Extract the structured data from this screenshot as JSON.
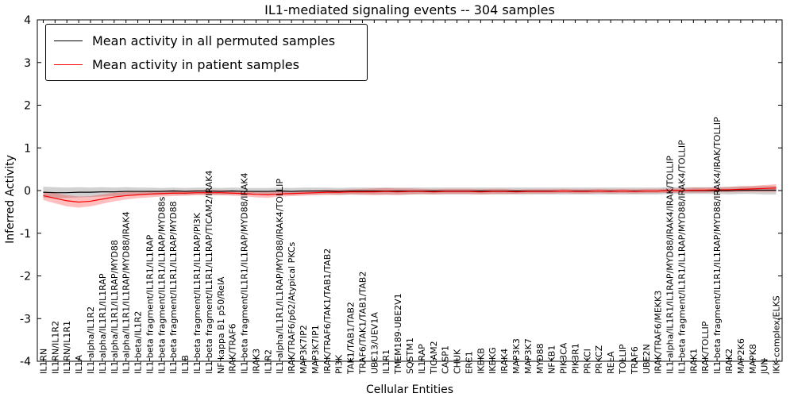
{
  "chart_data": {
    "type": "line",
    "title": "IL1-mediated signaling events -- 304 samples",
    "xlabel": "Cellular Entities",
    "ylabel": "Inferred Activity",
    "ylim": [
      -4,
      4
    ],
    "yticks": [
      -4,
      -3,
      -2,
      -1,
      0,
      1,
      2,
      3,
      4
    ],
    "grid": false,
    "legend_position": "upper left",
    "categories": [
      "IL1RN",
      "IL1RN/IL1R2",
      "IL1RN/IL1R1",
      "IL1A",
      "IL1 alpha/IL1R2",
      "IL1 alpha/IL1R1/IL1RAP",
      "IL1 alpha/IL1R1/IL1RAP/MYD88",
      "IL1 alpha/IL1R1/IL1RAP/MYD88/IRAK4",
      "IL1 beta/IL1R2",
      "IL1 beta fragment/IL1R1/IL1RAP",
      "IL1 beta fragment/IL1R1/IL1RAP/MYD88s",
      "IL1 beta fragment/IL1R1/IL1RAP/MYD88",
      "IL1B",
      "IL1 beta fragment/IL1R1/IL1RAP/PI3K",
      "IL1 beta fragment/IL1R1/IL1RAP/TICAM2/IRAK4",
      "NF kappa B1 p50/RelA",
      "IRAK/TRAF6",
      "IL1 beta fragment/IL1R1/IL1RAP/MYD88/IRAK4",
      "IRAK3",
      "IL1R2",
      "IL1 alpha/IL1R1/IL1RAP/MYD88/IRAK4/TOLLIP",
      "IRAK/TRAF6/p62/Atypical PKCs",
      "MAP3K7IP2",
      "MAP3K7IP1",
      "IRAK/TRAF6/TAK1/TAB1/TAB2",
      "PI3K",
      "TAK1/TAB1/TAB2",
      "TRAF6/TAK1/TAB1/TAB2",
      "UBC13/UEV1A",
      "IL1R1",
      "TMEM189-UBE2V1",
      "SQSTM1",
      "IL1RAP",
      "TICAM2",
      "CASP1",
      "CHUK",
      "ERC1",
      "IKBKB",
      "IKBKG",
      "IRAK4",
      "MAP3K3",
      "MAP3K7",
      "MYD88",
      "NFKB1",
      "PIK3CA",
      "PIK3R1",
      "PRKCI",
      "PRKCZ",
      "RELA",
      "TOLLIP",
      "TRAF6",
      "UBE2N",
      "IRAK/TRAF6/MEKK3",
      "IL1 alpha/IL1R1/IL1RAP/MYD88/IRAK4/IRAK/TOLLIP",
      "IL1 beta fragment/IL1R1/IL1RAP/MYD88/IRAK4/TOLLIP",
      "IRAK1",
      "IRAK/TOLLIP",
      "IL1 beta fragment/IL1R1/IL1RAP/MYD88/IRAK4/IRAK/TOLLIP",
      "IRAK2",
      "MAP2K6",
      "MAPK8",
      "JUN",
      "IKK complex/ELKS"
    ],
    "series": [
      {
        "id": "permuted",
        "name": "Mean activity in all permuted samples",
        "color": "#000000",
        "band_color": "#000000",
        "band_opacity": 0.18,
        "values": [
          -0.04,
          -0.05,
          -0.05,
          -0.04,
          -0.04,
          -0.03,
          -0.03,
          -0.02,
          -0.02,
          -0.02,
          -0.02,
          -0.01,
          -0.02,
          -0.01,
          -0.01,
          -0.02,
          -0.01,
          -0.02,
          -0.02,
          -0.02,
          -0.01,
          -0.02,
          -0.01,
          -0.01,
          -0.01,
          -0.02,
          -0.01,
          -0.01,
          -0.01,
          -0.01,
          -0.01,
          -0.01,
          -0.01,
          -0.01,
          -0.01,
          -0.01,
          -0.01,
          -0.01,
          -0.01,
          -0.01,
          -0.01,
          -0.01,
          -0.01,
          -0.01,
          -0.01,
          -0.01,
          -0.01,
          -0.01,
          -0.01,
          -0.01,
          -0.01,
          -0.01,
          -0.01,
          0.0,
          0.0,
          0.0,
          0.0,
          0.0,
          0.0,
          0.01,
          0.01,
          0.01,
          0.01
        ],
        "band_halfwidth": [
          0.13,
          0.13,
          0.12,
          0.12,
          0.11,
          0.11,
          0.1,
          0.1,
          0.09,
          0.09,
          0.08,
          0.08,
          0.08,
          0.08,
          0.08,
          0.08,
          0.08,
          0.08,
          0.08,
          0.08,
          0.08,
          0.08,
          0.08,
          0.08,
          0.08,
          0.08,
          0.08,
          0.08,
          0.08,
          0.08,
          0.08,
          0.08,
          0.08,
          0.08,
          0.08,
          0.08,
          0.08,
          0.08,
          0.08,
          0.08,
          0.08,
          0.08,
          0.08,
          0.08,
          0.08,
          0.08,
          0.08,
          0.08,
          0.08,
          0.08,
          0.08,
          0.08,
          0.08,
          0.08,
          0.08,
          0.08,
          0.08,
          0.08,
          0.09,
          0.09,
          0.09,
          0.1,
          0.1
        ]
      },
      {
        "id": "patient",
        "name": "Mean activity in patient samples",
        "color": "#ff0000",
        "band_color": "#ff0000",
        "band_opacity": 0.25,
        "values": [
          -0.12,
          -0.18,
          -0.24,
          -0.27,
          -0.25,
          -0.2,
          -0.15,
          -0.12,
          -0.1,
          -0.08,
          -0.07,
          -0.06,
          -0.06,
          -0.05,
          -0.05,
          -0.05,
          -0.06,
          -0.07,
          -0.09,
          -0.1,
          -0.08,
          -0.07,
          -0.06,
          -0.05,
          -0.04,
          -0.04,
          -0.03,
          -0.03,
          -0.03,
          -0.02,
          -0.03,
          -0.02,
          -0.02,
          -0.03,
          -0.02,
          -0.02,
          -0.02,
          -0.03,
          -0.02,
          -0.02,
          -0.03,
          -0.02,
          -0.02,
          -0.02,
          -0.01,
          -0.02,
          -0.02,
          -0.01,
          -0.02,
          -0.01,
          -0.02,
          -0.01,
          -0.01,
          0.0,
          0.0,
          0.01,
          0.01,
          0.02,
          0.02,
          0.03,
          0.04,
          0.05,
          0.06
        ],
        "band_halfwidth": [
          0.1,
          0.12,
          0.13,
          0.13,
          0.12,
          0.11,
          0.1,
          0.09,
          0.08,
          0.08,
          0.07,
          0.07,
          0.06,
          0.06,
          0.06,
          0.06,
          0.06,
          0.06,
          0.07,
          0.07,
          0.06,
          0.06,
          0.06,
          0.06,
          0.06,
          0.06,
          0.06,
          0.07,
          0.08,
          0.08,
          0.08,
          0.07,
          0.06,
          0.06,
          0.06,
          0.06,
          0.06,
          0.06,
          0.06,
          0.06,
          0.05,
          0.05,
          0.05,
          0.05,
          0.05,
          0.05,
          0.05,
          0.05,
          0.05,
          0.05,
          0.05,
          0.05,
          0.05,
          0.05,
          0.05,
          0.06,
          0.06,
          0.06,
          0.06,
          0.07,
          0.07,
          0.08,
          0.09
        ]
      }
    ]
  }
}
